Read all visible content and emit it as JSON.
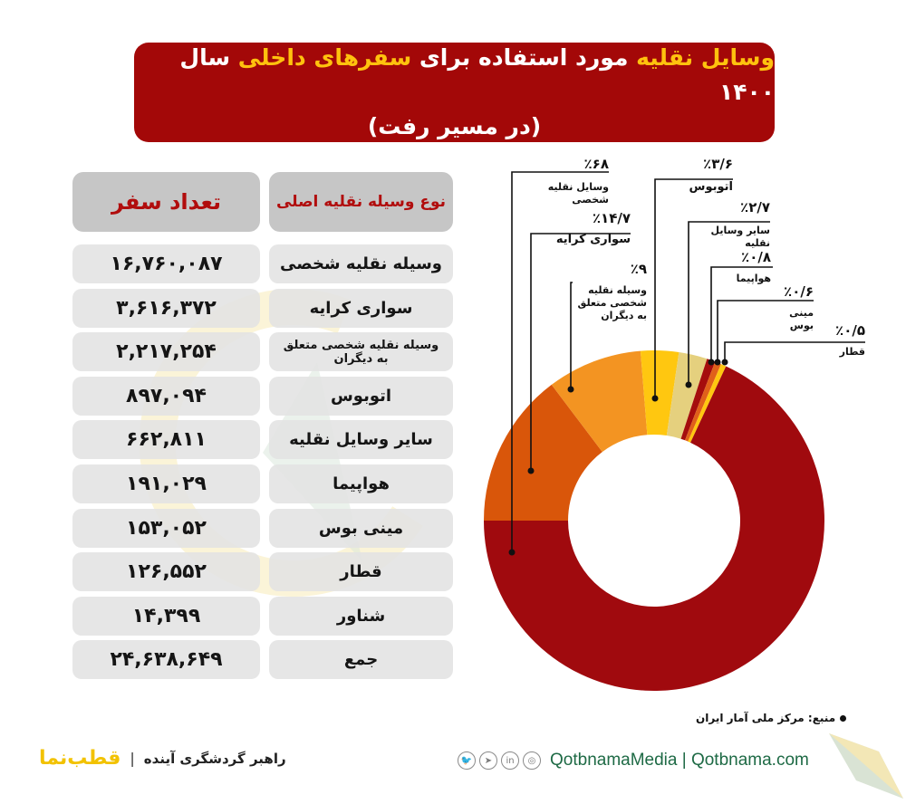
{
  "title": {
    "line1_parts": [
      {
        "text": "وسایل نقلیه",
        "highlight": true
      },
      {
        "text": " مورد استفاده برای ",
        "highlight": false
      },
      {
        "text": "سفرهای داخلی",
        "highlight": true
      },
      {
        "text": " سال ۱۴۰۰",
        "highlight": false
      }
    ],
    "line2": "(در مسیر رفت)"
  },
  "table": {
    "header": {
      "type": "نوع وسیله نقلیه اصلی",
      "count": "تعداد سفر"
    },
    "rows": [
      {
        "type": "وسیله نقلیه شخصی",
        "count": "۱۶,۷۶۰,۰۸۷"
      },
      {
        "type": "سواری کرایه",
        "count": "۳,۶۱۶,۳۷۲"
      },
      {
        "type": "وسیله نقلیه شخصی متعلق به دیگران",
        "count": "۲,۲۱۷,۲۵۴"
      },
      {
        "type": "اتوبوس",
        "count": "۸۹۷,۰۹۴"
      },
      {
        "type": "سایر وسایل نقلیه",
        "count": "۶۶۲,۸۱۱"
      },
      {
        "type": "هواپیما",
        "count": "۱۹۱,۰۲۹"
      },
      {
        "type": "مینی بوس",
        "count": "۱۵۳,۰۵۲"
      },
      {
        "type": "قطار",
        "count": "۱۲۶,۵۵۲"
      },
      {
        "type": "شناور",
        "count": "۱۴,۳۹۹"
      },
      {
        "type": "جمع",
        "count": "۲۴,۶۳۸,۶۴۹"
      }
    ]
  },
  "chart_data": {
    "type": "pie",
    "subtype": "donut",
    "title": "وسایل نقلیه مورد استفاده برای سفرهای داخلی سال ۱۴۰۰ (در مسیر رفت)",
    "categories": [
      "وسایل نقلیه شخصی",
      "سواری کرایه",
      "وسیله نقلیه شخصی متعلق به دیگران",
      "اتوبوس",
      "سایر وسایل نقلیه",
      "هواپیما",
      "مینی بوس",
      "قطار"
    ],
    "values": [
      68,
      14.7,
      9,
      3.6,
      2.7,
      0.8,
      0.6,
      0.5
    ],
    "labels": [
      "٪۶۸",
      "٪۱۴/۷",
      "٪۹",
      "٪۳/۶",
      "٪۲/۷",
      "٪۰/۸",
      "٪۰/۶",
      "٪۰/۵"
    ],
    "colors": [
      "#a00a0e",
      "#d9560a",
      "#f39422",
      "#ffc710",
      "#e5d07e",
      "#a50d0d",
      "#e0601a",
      "#ffc710"
    ],
    "unit": "%",
    "legend": "leader-line labels"
  },
  "source": "منبع: مرکز ملی آمار ایران",
  "footer": {
    "social_icons": [
      "twitter-icon",
      "telegram-icon",
      "linkedin-icon",
      "instagram-icon"
    ],
    "social_glyphs": [
      "🐦",
      "➤",
      "in",
      "◎"
    ],
    "handle": "QotbnamaMedia | Qotbnama.com",
    "brand": "قطب‌نما",
    "tagline": "راهبر گردشگری آینده",
    "separator": "|"
  },
  "colors": {
    "title_bg": "#a30808",
    "highlight": "#ffc20e",
    "header_text": "#b10d0d",
    "footer_green": "#1e6a45"
  }
}
